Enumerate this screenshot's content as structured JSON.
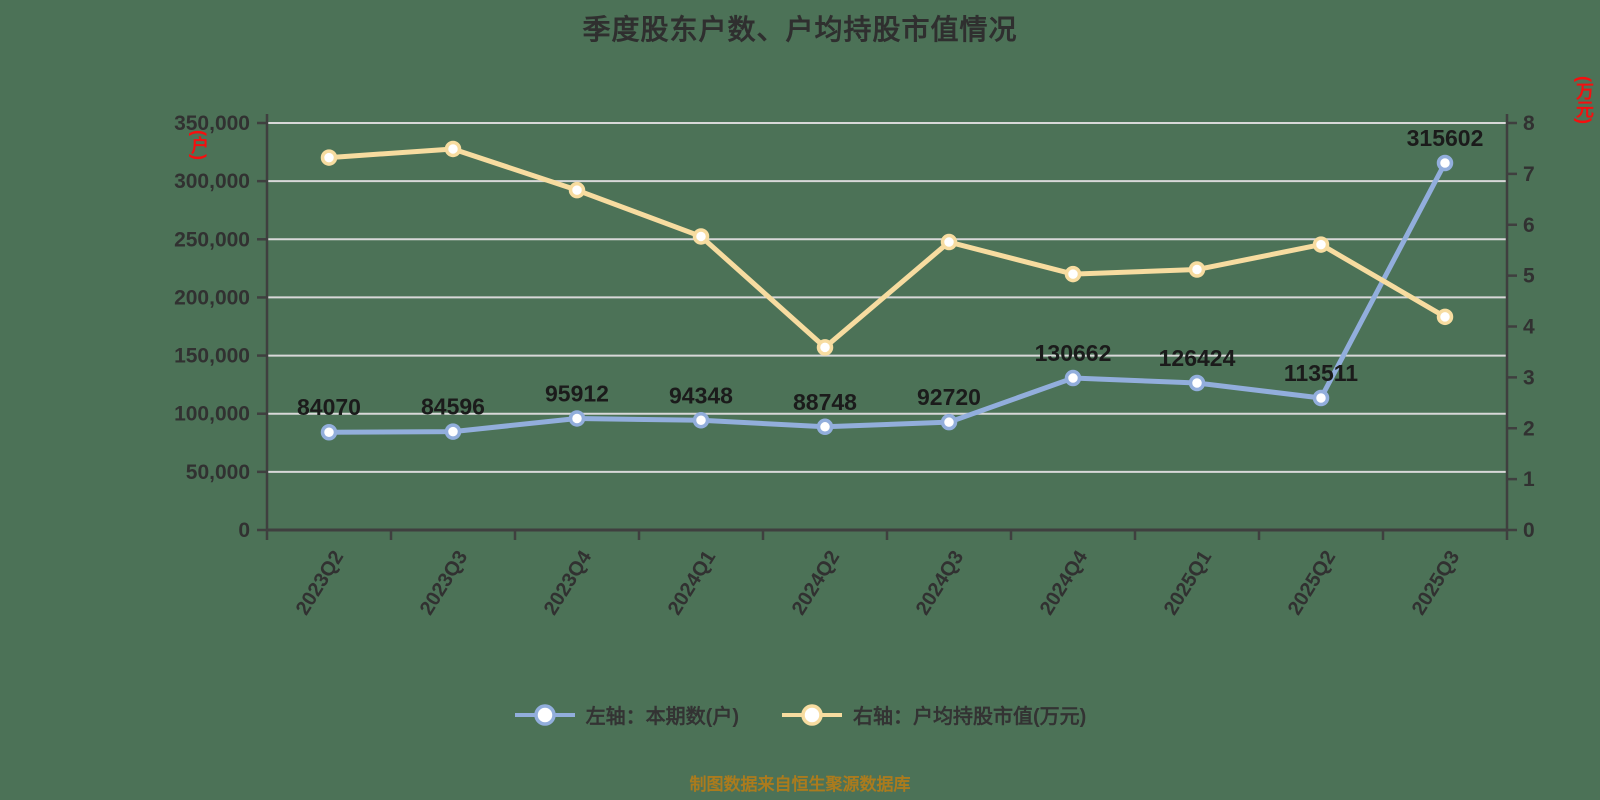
{
  "title": "季度股东户数、户均持股市值情况",
  "footer": "制图数据来自恒生聚源数据库",
  "legend": [
    {
      "label": "左轴：本期数(户)",
      "color": "#92AEDC"
    },
    {
      "label": "右轴：户均持股市值(万元)",
      "color": "#F7DCA0"
    }
  ],
  "left_axis": {
    "unit_label": "(户)",
    "tick_values": [
      0,
      50000,
      100000,
      150000,
      200000,
      250000,
      300000,
      350000
    ],
    "tick_labels": [
      "0",
      "50,000",
      "100,000",
      "150,000",
      "200,000",
      "250,000",
      "300,000",
      "350,000"
    ]
  },
  "right_axis": {
    "unit_label": "(万元)",
    "tick_values": [
      0,
      1,
      2,
      3,
      4,
      5,
      6,
      7,
      8
    ],
    "tick_labels": [
      "0",
      "1",
      "2",
      "3",
      "4",
      "5",
      "6",
      "7",
      "8"
    ]
  },
  "chart_data": {
    "type": "line",
    "title": "季度股东户数、户均持股市值情况",
    "categories": [
      "2023Q2",
      "2023Q3",
      "2023Q4",
      "2024Q1",
      "2024Q2",
      "2024Q3",
      "2024Q4",
      "2025Q1",
      "2025Q2",
      "2025Q3"
    ],
    "series": [
      {
        "name": "左轴：本期数(户)",
        "axis": "left",
        "color": "#92AEDC",
        "values": [
          84070,
          84596,
          95912,
          94348,
          88748,
          92720,
          130662,
          126424,
          113511,
          315602
        ],
        "show_labels": true
      },
      {
        "name": "右轴：户均持股市值(万元)",
        "axis": "right",
        "color": "#F7DCA0",
        "values": [
          7.32,
          7.49,
          6.68,
          5.77,
          3.59,
          5.66,
          5.03,
          5.12,
          5.61,
          4.19
        ],
        "show_labels": false
      }
    ],
    "left_ylim": [
      0,
      350000
    ],
    "right_ylim": [
      0,
      8
    ],
    "grid": true,
    "legend_position": "bottom"
  },
  "colors": {
    "background": "#4C7257",
    "grid": "#D8D8D8",
    "axis": "#3F3F3F",
    "text": "#313131",
    "data_label": "#1B1B1B",
    "unit_label_red": "#F50F0F",
    "footer_text": "#AB7B1D",
    "marker_fill": "#FFFFFF"
  }
}
